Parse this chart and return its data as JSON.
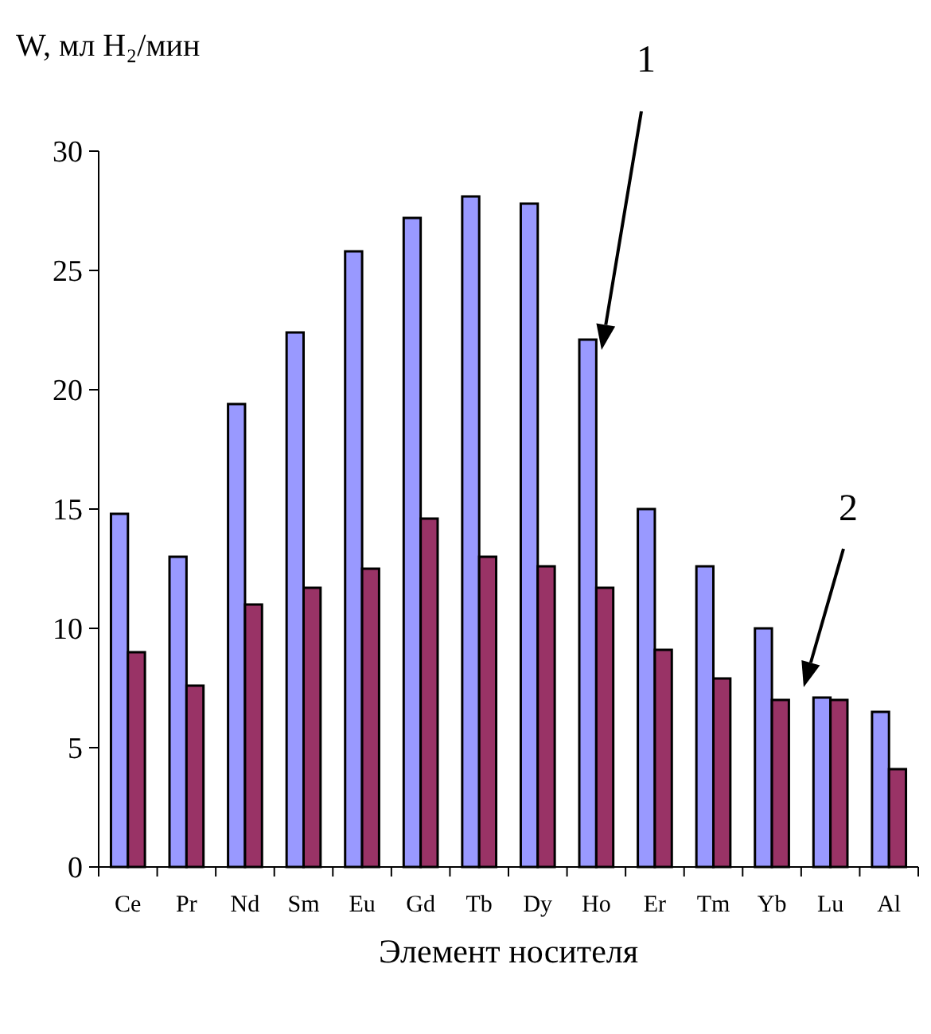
{
  "chart_data": {
    "type": "bar",
    "ylabel": "W, мл H₂/мин",
    "xlabel": "Элемент носителя",
    "categories": [
      "Ce",
      "Pr",
      "Nd",
      "Sm",
      "Eu",
      "Gd",
      "Tb",
      "Dy",
      "Ho",
      "Er",
      "Tm",
      "Yb",
      "Lu",
      "Al"
    ],
    "series": [
      {
        "color": "#9999ff",
        "values": [
          14.8,
          13.0,
          19.4,
          22.4,
          25.8,
          27.2,
          28.1,
          27.8,
          22.1,
          15.0,
          12.6,
          10.0,
          7.1,
          6.5
        ]
      },
      {
        "color": "#993366",
        "values": [
          9.0,
          7.6,
          11.0,
          11.7,
          12.5,
          14.6,
          13.0,
          12.6,
          11.7,
          9.1,
          7.9,
          7.0,
          7.0,
          4.1
        ]
      }
    ],
    "ylim": [
      0,
      30
    ],
    "yticks": [
      0,
      5,
      10,
      15,
      20,
      25,
      30
    ],
    "grid": false,
    "annotations": [
      "1",
      "2"
    ]
  }
}
